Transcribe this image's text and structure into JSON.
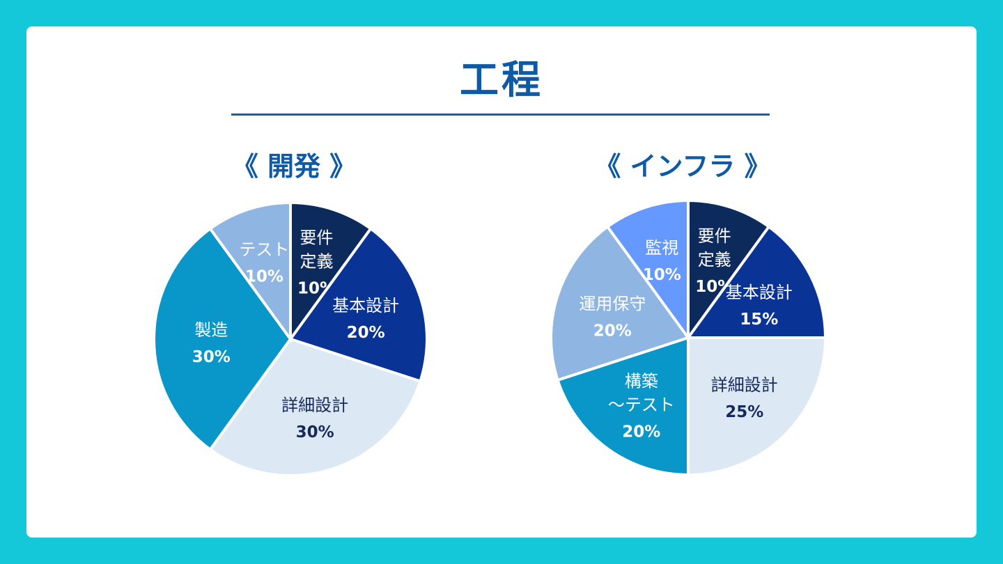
{
  "title": "工程",
  "chart_data": [
    {
      "type": "pie",
      "title": "《 開発 》",
      "slices": [
        {
          "label": [
            "要件",
            "定義"
          ],
          "value": 10,
          "pct_label": "10%",
          "color": "#0d2a5c",
          "text_color": "#ffffff"
        },
        {
          "label": [
            "基本設計"
          ],
          "value": 20,
          "pct_label": "20%",
          "color": "#0a3396",
          "text_color": "#ffffff"
        },
        {
          "label": [
            "詳細設計"
          ],
          "value": 30,
          "pct_label": "30%",
          "color": "#dde8f5",
          "text_color": "#17295c"
        },
        {
          "label": [
            "製造"
          ],
          "value": 30,
          "pct_label": "30%",
          "color": "#0997c9",
          "text_color": "#ffffff"
        },
        {
          "label": [
            "テスト"
          ],
          "value": 10,
          "pct_label": "10%",
          "color": "#8fb5e3",
          "text_color": "#ffffff"
        }
      ]
    },
    {
      "type": "pie",
      "title": "《 インフラ 》",
      "slices": [
        {
          "label": [
            "要件",
            "定義"
          ],
          "value": 10,
          "pct_label": "10%",
          "color": "#0d2a5c",
          "text_color": "#ffffff"
        },
        {
          "label": [
            "基本設計"
          ],
          "value": 15,
          "pct_label": "15%",
          "color": "#0a3396",
          "text_color": "#ffffff"
        },
        {
          "label": [
            "詳細設計"
          ],
          "value": 25,
          "pct_label": "25%",
          "color": "#dde8f5",
          "text_color": "#17295c"
        },
        {
          "label": [
            "構築",
            "～テスト"
          ],
          "value": 20,
          "pct_label": "20%",
          "color": "#0997c9",
          "text_color": "#ffffff"
        },
        {
          "label": [
            "運用保守"
          ],
          "value": 20,
          "pct_label": "20%",
          "color": "#8fb5e3",
          "text_color": "#ffffff"
        },
        {
          "label": [
            "監視"
          ],
          "value": 10,
          "pct_label": "10%",
          "color": "#6699ff",
          "text_color": "#ffffff"
        }
      ]
    }
  ]
}
